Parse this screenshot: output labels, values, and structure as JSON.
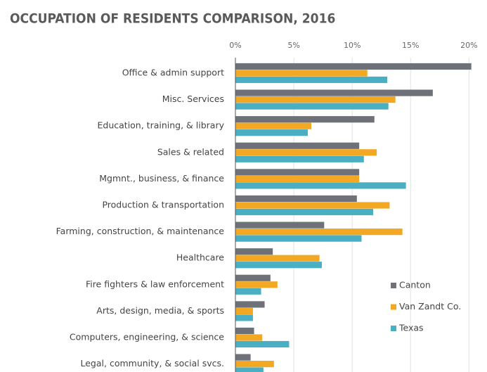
{
  "chart_data": {
    "type": "hbar",
    "title": "OCCUPATION OF RESIDENTS COMPARISON, 2016",
    "categories": [
      "Office & admin support",
      "Misc. Services",
      "Education, training, & library",
      "Sales & related",
      "Mgmnt., business, & finance",
      "Production & transportation",
      "Farming, construction, & maintenance",
      "Healthcare",
      "Fire fighters & law enforcement",
      "Arts, design, media, & sports",
      "Computers, engineering, & science",
      "Legal, community, & social svcs."
    ],
    "series": [
      {
        "name": "Canton",
        "color": "#6e7278",
        "values": [
          20.2,
          16.9,
          11.9,
          10.6,
          10.6,
          10.4,
          7.6,
          3.2,
          3.0,
          2.5,
          1.6,
          1.3
        ]
      },
      {
        "name": "Van Zandt Co.",
        "color": "#f2a823",
        "values": [
          11.3,
          13.7,
          6.5,
          12.1,
          10.6,
          13.2,
          14.3,
          7.2,
          3.6,
          1.5,
          2.3,
          3.3
        ]
      },
      {
        "name": "Texas",
        "color": "#4aafc2",
        "values": [
          13.0,
          13.1,
          6.2,
          11.0,
          14.6,
          11.8,
          10.8,
          7.4,
          2.2,
          1.5,
          4.6,
          2.4
        ]
      }
    ],
    "xlim": [
      0,
      21
    ],
    "xticks": [
      {
        "value": 0,
        "label": "0%"
      },
      {
        "value": 5,
        "label": "5%"
      },
      {
        "value": 10,
        "label": "10%"
      },
      {
        "value": 15,
        "label": "15%"
      },
      {
        "value": 20,
        "label": "20%"
      }
    ],
    "grid": true,
    "legend": "lower right"
  }
}
